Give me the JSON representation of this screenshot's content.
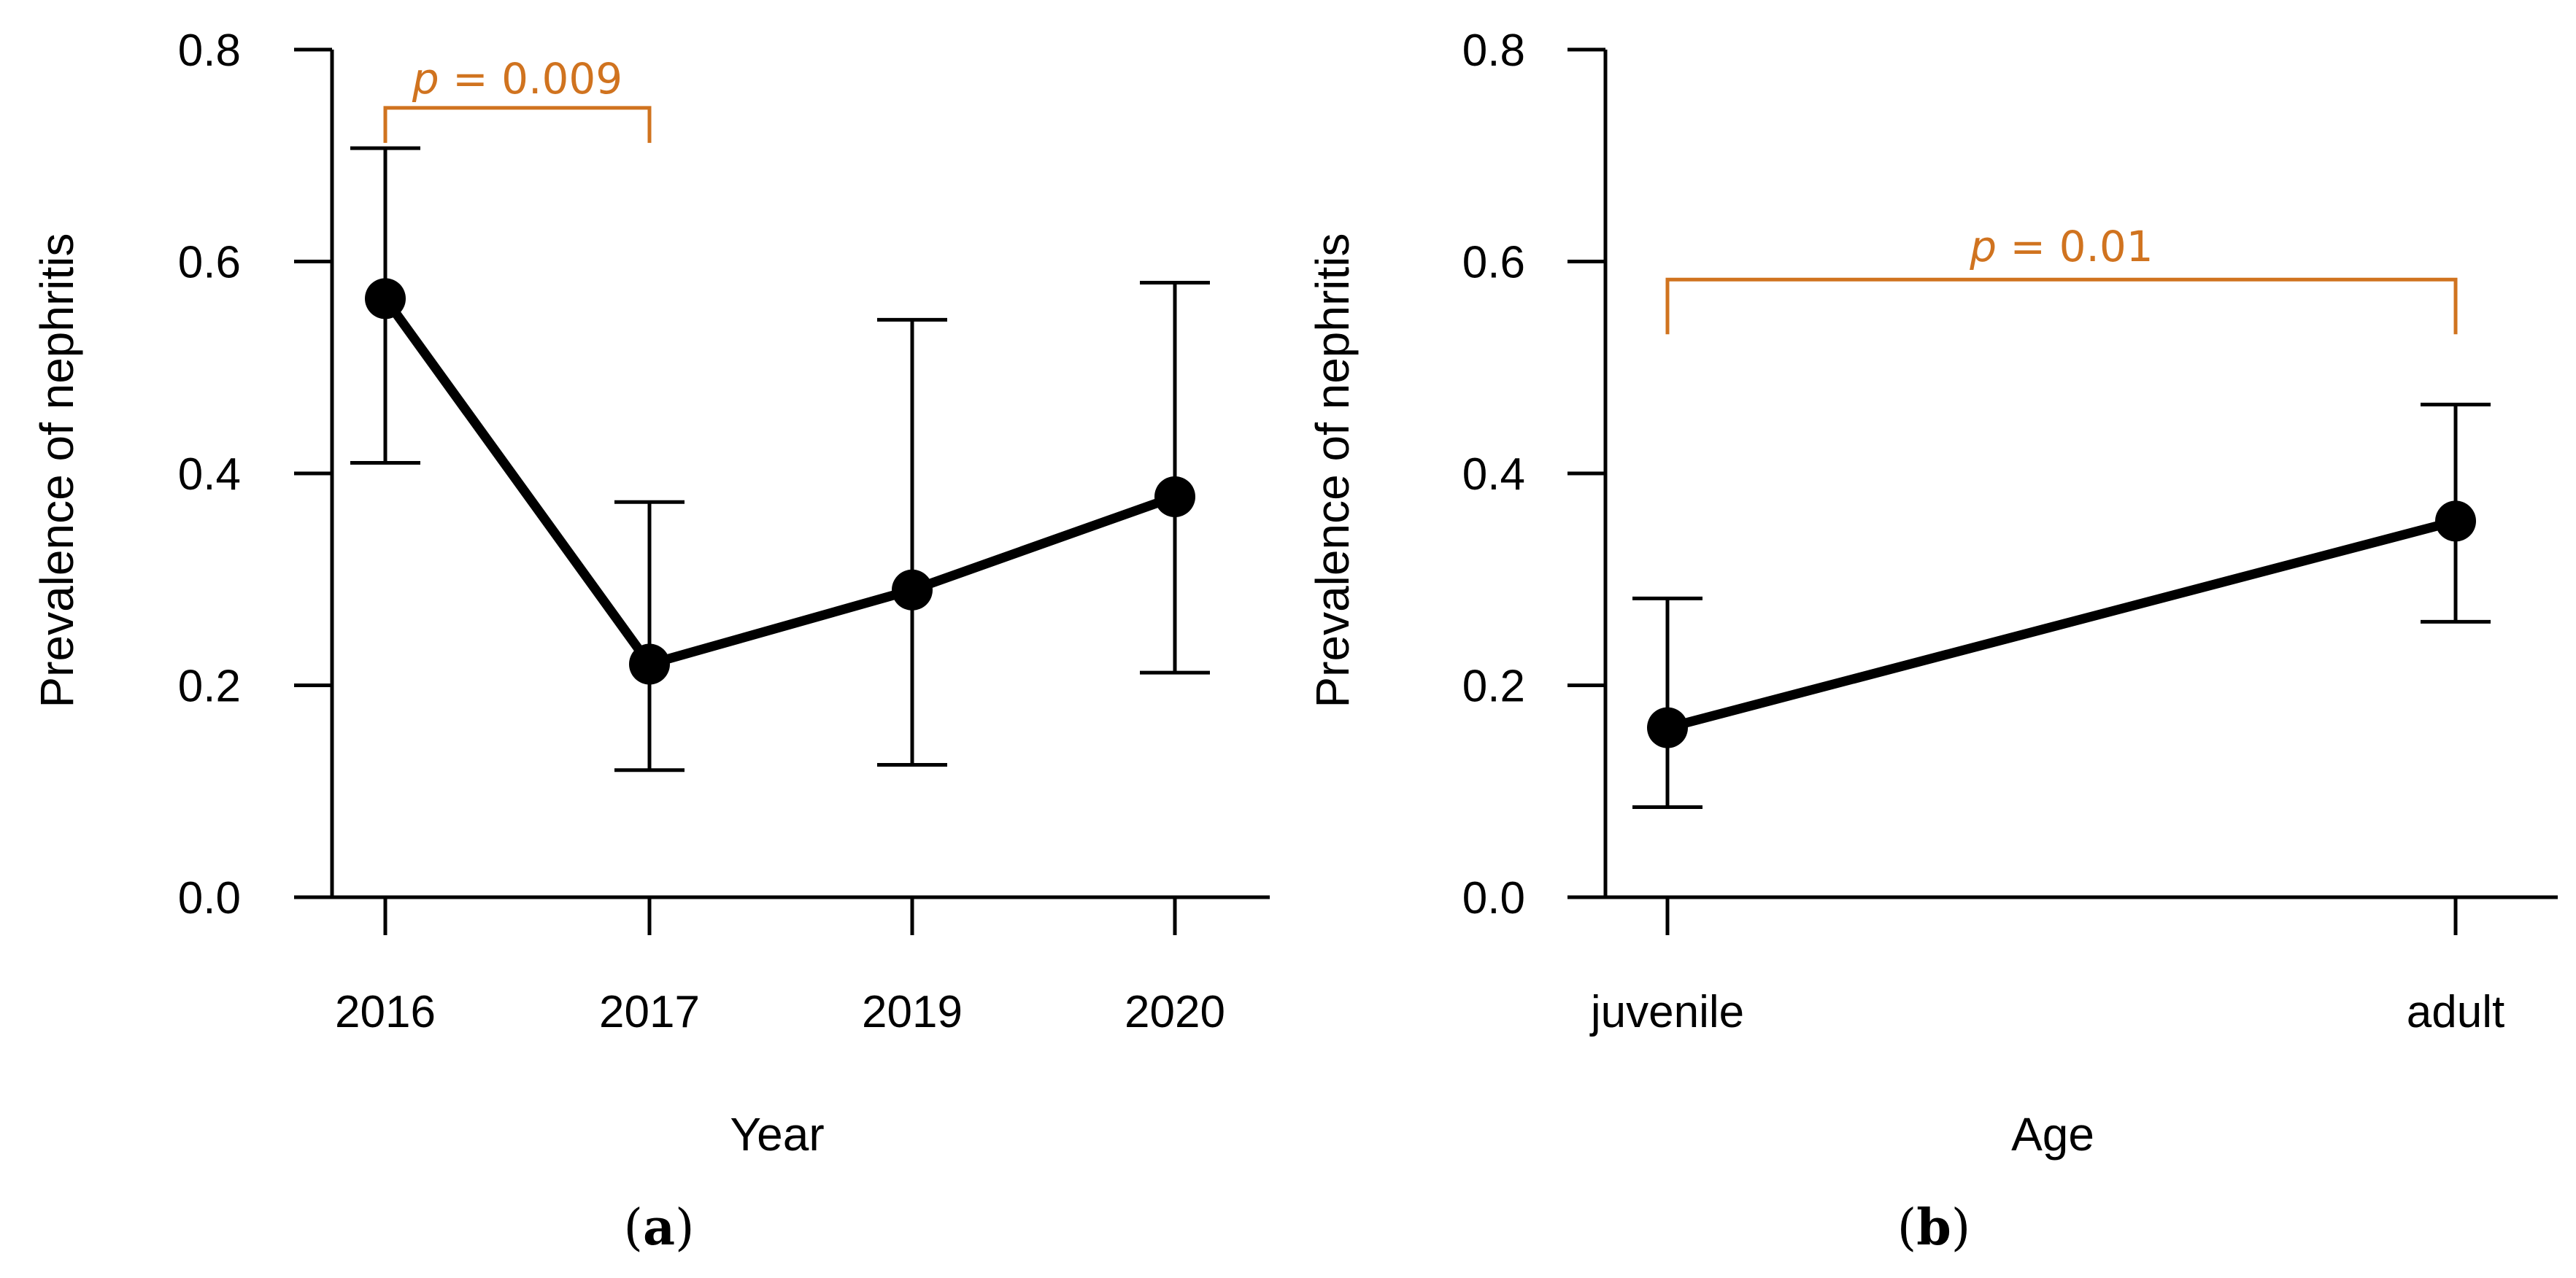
{
  "chart_data": [
    {
      "type": "line",
      "panel": "a",
      "title": "",
      "xlabel": "Year",
      "ylabel": "Prevalence of nephritis",
      "categories": [
        "2016",
        "2017",
        "2019",
        "2020"
      ],
      "values": [
        0.565,
        0.22,
        0.29,
        0.378
      ],
      "error_low": [
        0.41,
        0.12,
        0.125,
        0.212
      ],
      "error_high": [
        0.707,
        0.373,
        0.545,
        0.58
      ],
      "ylim": [
        0.0,
        0.8
      ],
      "yticks": [
        "0.0",
        "0.2",
        "0.4",
        "0.6",
        "0.8"
      ],
      "grid": false,
      "significance": {
        "from": 0,
        "to": 1,
        "label_p": "p",
        "label_value": " = 0.009",
        "level": 0.745
      }
    },
    {
      "type": "line",
      "panel": "b",
      "title": "",
      "xlabel": "Age",
      "ylabel": "Prevalence of nephritis",
      "categories": [
        "juvenile",
        "adult"
      ],
      "values": [
        0.16,
        0.355
      ],
      "error_low": [
        0.085,
        0.26
      ],
      "error_high": [
        0.282,
        0.465
      ],
      "ylim": [
        0.0,
        0.8
      ],
      "yticks": [
        "0.0",
        "0.2",
        "0.4",
        "0.6",
        "0.8"
      ],
      "grid": false,
      "significance": {
        "from": 0,
        "to": 1,
        "label_p": "p",
        "label_value": " = 0.01",
        "level": 0.583
      }
    }
  ],
  "colors": {
    "annotation": "#D0731F",
    "series": "#000000"
  },
  "panel_labels": [
    {
      "open": "(",
      "letter": "a",
      "close": ")"
    },
    {
      "open": "(",
      "letter": "b",
      "close": ")"
    }
  ]
}
